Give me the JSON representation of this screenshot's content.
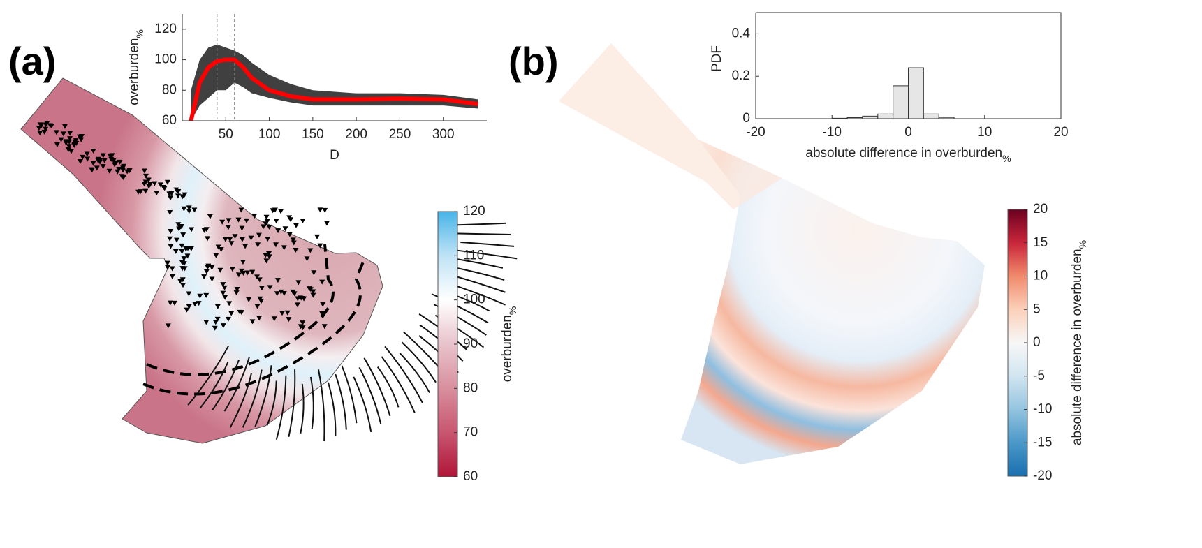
{
  "panel_labels": [
    "(a)",
    "(b)"
  ],
  "chart_data": [
    {
      "type": "line",
      "xlabel": "D",
      "ylabel": {
        "text": "overburden",
        "subscript": "%"
      },
      "x": [
        10,
        20,
        30,
        40,
        50,
        60,
        70,
        80,
        100,
        125,
        150,
        200,
        250,
        300,
        340
      ],
      "series": [
        {
          "color": "#ff0000",
          "values": [
            60,
            85,
            95,
            99,
            100,
            100,
            95,
            88,
            80,
            76,
            74,
            74,
            74.5,
            74,
            71
          ]
        }
      ],
      "band": {
        "color": "#000000",
        "upper": [
          80,
          100,
          108,
          110,
          108,
          106,
          103,
          98,
          90,
          84,
          80,
          78,
          78,
          77,
          74
        ],
        "lower": [
          60,
          70,
          75,
          80,
          80,
          85,
          82,
          78,
          75,
          72,
          70,
          70,
          70,
          70,
          68
        ]
      },
      "vlines": [
        40,
        60
      ],
      "xlim": [
        0,
        350
      ],
      "ylim": [
        60,
        130
      ],
      "xticks": [
        50,
        100,
        150,
        200,
        250,
        300
      ],
      "yticks": [
        60,
        80,
        100,
        120
      ]
    },
    {
      "type": "histogram",
      "xlabel": {
        "text": "absolute difference in overburden",
        "subscript": "%"
      },
      "ylabel": "PDF",
      "bins": [
        -10,
        -8,
        -6,
        -4,
        -2,
        0,
        2,
        4,
        6
      ],
      "values": [
        0.002,
        0.005,
        0.012,
        0.022,
        0.155,
        0.24,
        0.022,
        0.006
      ],
      "color": "#e6e6e6",
      "xlim": [
        -20,
        20
      ],
      "ylim": [
        0,
        0.5
      ],
      "xticks": [
        -20,
        -10,
        0,
        10,
        20
      ],
      "yticks": [
        0,
        0.2,
        0.4
      ]
    },
    {
      "type": "colorbar",
      "label": {
        "text": "overburden",
        "subscript": "%"
      },
      "lim": [
        60,
        120
      ],
      "ticks": [
        60,
        70,
        80,
        90,
        100,
        110,
        120
      ],
      "colors": [
        "#b01538",
        "#c8566f",
        "#d88f9e",
        "#e8c3cb",
        "#ffffff",
        "#bfe3f5",
        "#48b4e8"
      ]
    },
    {
      "type": "colorbar",
      "label": {
        "text": "absolute difference in overburden",
        "subscript": "%"
      },
      "lim": [
        -20,
        20
      ],
      "ticks": [
        -20,
        -15,
        -10,
        -5,
        0,
        5,
        10,
        15,
        20
      ],
      "colors": [
        "#1a6faf",
        "#4a98c9",
        "#94c4df",
        "#d1e5f0",
        "#f7f7f7",
        "#fbd0b9",
        "#f08a6c",
        "#c9263a",
        "#6b0020"
      ]
    }
  ]
}
